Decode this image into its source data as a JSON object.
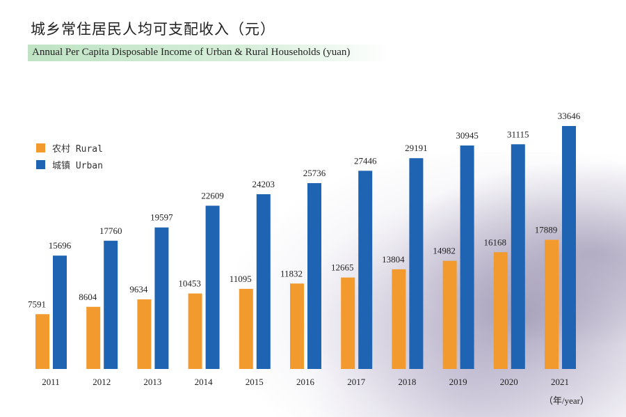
{
  "title_cn": "城乡常住居民人均可支配收入（元）",
  "title_en": "Annual Per Capita Disposable Income of Urban & Rural Households (yuan)",
  "x_unit": "（年/year）",
  "colors": {
    "rural": "#F39A2E",
    "urban": "#1F63B3",
    "header_band": "#BFE3C4"
  },
  "legend": [
    {
      "label": "农村 Rural",
      "color": "#F39A2E"
    },
    {
      "label": "城镇 Urban",
      "color": "#1F63B3"
    }
  ],
  "chart_data": {
    "type": "bar",
    "categories": [
      "2011",
      "2012",
      "2013",
      "2014",
      "2015",
      "2016",
      "2017",
      "2018",
      "2019",
      "2020",
      "2021"
    ],
    "series": [
      {
        "name": "农村 Rural",
        "values": [
          7591,
          8604,
          9634,
          10453,
          11095,
          11832,
          12665,
          13804,
          14982,
          16168,
          17889
        ]
      },
      {
        "name": "城镇 Urban",
        "values": [
          15696,
          17760,
          19597,
          22609,
          24203,
          25736,
          27446,
          29191,
          30945,
          31115,
          33646
        ]
      }
    ],
    "ylim": [
      0,
      33646
    ],
    "grid": false,
    "legend_position": "top-left"
  }
}
